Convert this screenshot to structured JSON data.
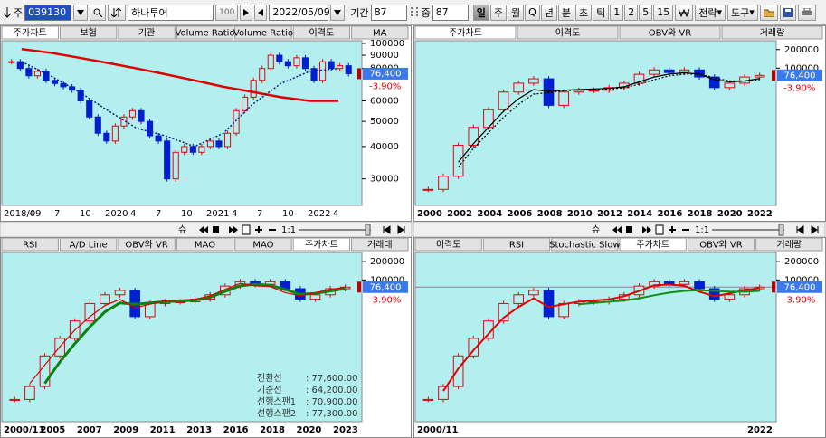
{
  "toolbar": {
    "market": "주",
    "code": "039130",
    "name": "하나투어",
    "zoom": "100",
    "date": "2022/05/09",
    "period_label": "기간",
    "period": "87",
    "mid_label": "중",
    "mid": "87",
    "intervals": [
      "일",
      "주",
      "월",
      "Q",
      "년",
      "분",
      "초",
      "틱",
      "1",
      "2",
      "5",
      "15"
    ],
    "strategy": "전략",
    "tools": "도구"
  },
  "controls": {
    "sync": "슈",
    "scale": "1:1"
  },
  "panels": [
    {
      "tabs": [
        "주가차트",
        "보험",
        "기관",
        "Volume Ratio",
        "Volume Ratio",
        "이격도",
        "MA"
      ],
      "active_tab": 0,
      "log_scale": true,
      "ylim": [
        23700,
        102400
      ],
      "yticks": [
        100000,
        90000,
        80000,
        60000,
        50000,
        40000,
        30000
      ],
      "xlabels": [
        "2018/09",
        "4",
        "7",
        "10",
        "2020",
        "4",
        "7",
        "10",
        "2021",
        "4",
        "7",
        "10",
        "2022",
        "4"
      ],
      "price": {
        "up_color": "#e8000c",
        "down_color": "#0020d0",
        "values": [
          85000,
          80000,
          75000,
          78000,
          72000,
          70000,
          68000,
          66000,
          60000,
          52000,
          45000,
          42000,
          48000,
          52000,
          55000,
          50000,
          44000,
          42000,
          30000,
          38000,
          40000,
          38000,
          40000,
          42000,
          40000,
          45000,
          55000,
          62000,
          72000,
          80000,
          90000,
          85000,
          82000,
          88000,
          80000,
          72000,
          85000,
          80000,
          82000,
          76400
        ]
      },
      "series": [
        {
          "color": "#e00000",
          "width": 2.5,
          "values": [
            95000,
            92000,
            88000,
            84000,
            80000,
            76000,
            72000,
            68000,
            65000,
            62000,
            60000,
            60000
          ]
        },
        {
          "color": "#102080",
          "dash": true,
          "width": 1.5,
          "values": [
            85000,
            75000,
            65000,
            55000,
            47000,
            44000,
            40000,
            45000,
            58000,
            70000,
            78000,
            80000
          ]
        }
      ],
      "last_label": "76,400",
      "change_label": "-3.90%"
    },
    {
      "tabs": [
        "주가차트",
        "이격도",
        "OBV와 VR",
        "거래량"
      ],
      "active_tab": 0,
      "log_scale": true,
      "ylim": [
        600,
        278000
      ],
      "yticks": [
        200000,
        100000
      ],
      "xlabels": [
        "2000",
        "2002",
        "2004",
        "2006",
        "2008",
        "2010",
        "2012",
        "2014",
        "2016",
        "2018",
        "2020",
        "2022"
      ],
      "price": {
        "up_color": "#e8000c",
        "down_color": "#0020d0",
        "values": [
          1090,
          1780,
          5660,
          11000,
          21200,
          41000,
          57100,
          67300,
          25000,
          41000,
          43800,
          43800,
          48400,
          57100,
          79400,
          93600,
          84800,
          93600,
          71900,
          48400,
          57100,
          71900,
          76400
        ]
      },
      "series": [
        {
          "color": "#000000",
          "width": 1.2,
          "values": [
            null,
            null,
            3000,
            6000,
            11000,
            20000,
            32000,
            45000,
            42000,
            44000,
            45000,
            46000,
            47000,
            50000,
            60000,
            72000,
            80000,
            84000,
            80000,
            65000,
            60000,
            62000,
            68000
          ]
        },
        {
          "color": "#000000",
          "dash": true,
          "width": 1.2,
          "values": [
            null,
            null,
            2500,
            5000,
            9000,
            16000,
            26000,
            38000,
            40000,
            43000,
            44000,
            45000,
            46000,
            48000,
            55000,
            65000,
            75000,
            80000,
            80000,
            70000,
            62000,
            62000,
            65000
          ]
        }
      ],
      "last_label": "76,400",
      "change_label": "-3.90%"
    },
    {
      "tabs": [
        "RSI",
        "A/D Line",
        "OBV와 VR",
        "MAO",
        "MAO",
        "주가차트",
        "거래대"
      ],
      "active_tab": 5,
      "log_scale": true,
      "ylim": [
        470,
        283000
      ],
      "yticks": [
        200000,
        100000
      ],
      "xlabels": [
        "2000/11",
        "2005",
        "2007",
        "2009",
        "2011",
        "2013",
        "2016",
        "2018",
        "2020",
        "2023"
      ],
      "price": {
        "up_color": "#e8000c",
        "down_color": "#0020d0",
        "values": [
          1090,
          1780,
          5660,
          11000,
          21200,
          41000,
          57100,
          67300,
          25000,
          41000,
          43800,
          43800,
          48400,
          57100,
          79400,
          93600,
          84800,
          93600,
          71900,
          48400,
          57100,
          71900,
          76400
        ]
      },
      "series": [
        {
          "color": "#108010",
          "width": 3,
          "values": [
            null,
            null,
            2000,
            4500,
            9000,
            17000,
            30000,
            42000,
            40000,
            42000,
            44000,
            45000,
            47000,
            52000,
            65000,
            80000,
            85000,
            82000,
            70000,
            58000,
            60000,
            66000,
            72000
          ]
        },
        {
          "color": "#e00000",
          "width": 1.2,
          "values": [
            null,
            2000,
            4000,
            8000,
            15000,
            25000,
            38000,
            48000,
            35000,
            40000,
            46000,
            47000,
            48000,
            55000,
            70000,
            88000,
            80000,
            78000,
            62000,
            55000,
            62000,
            70000,
            76000
          ]
        }
      ],
      "last_label": "76,400",
      "change_label": "-3.90%",
      "ichimoku": [
        [
          "전환선",
          ": 77,600.00"
        ],
        [
          "기준선",
          ": 64,200.00"
        ],
        [
          "선행스팬1",
          ": 70,900.00"
        ],
        [
          "선행스팬2",
          ": 77,300.00"
        ]
      ]
    },
    {
      "tabs": [
        "이격도",
        "RSI",
        "Stochastic Slow",
        "주가차트",
        "OBV와 VR",
        "거래량"
      ],
      "active_tab": 3,
      "log_scale": true,
      "ylim": [
        470,
        283000
      ],
      "yticks": [
        200000,
        100000
      ],
      "xlabels": [
        "2000/11",
        "2022"
      ],
      "price": {
        "up_color": "#e8000c",
        "down_color": "#0020d0",
        "values": [
          1090,
          1780,
          5660,
          11000,
          21200,
          41000,
          57100,
          67300,
          25000,
          41000,
          43800,
          43800,
          48400,
          57100,
          79400,
          93600,
          84800,
          93600,
          71900,
          48400,
          57100,
          71900,
          76400
        ]
      },
      "series": [
        {
          "color": "#e00000",
          "width": 2,
          "values": [
            null,
            1500,
            3500,
            7000,
            13000,
            24000,
            36000,
            50000,
            36000,
            40000,
            44000,
            46000,
            48000,
            54000,
            66000,
            82000,
            84000,
            80000,
            64000,
            54000,
            60000,
            68000,
            74000
          ]
        },
        {
          "color": "#109010",
          "width": 2,
          "values": [
            null,
            null,
            null,
            null,
            null,
            null,
            null,
            null,
            null,
            null,
            40000,
            42000,
            44000,
            46000,
            50000,
            56000,
            62000,
            66000,
            68000,
            66000,
            64000,
            64000,
            66000
          ]
        }
      ],
      "ref_line": "#d06090",
      "last_label": "76,400",
      "change_label": "-3.90%"
    }
  ]
}
